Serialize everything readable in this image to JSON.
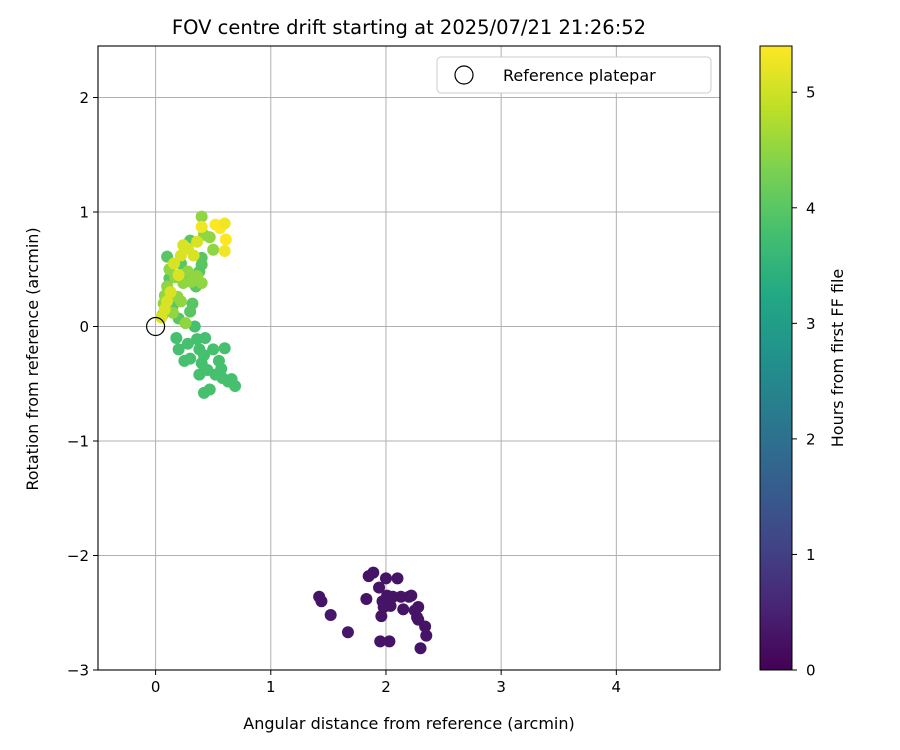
{
  "chart_data": {
    "type": "scatter",
    "title": "FOV centre drift starting at 2025/07/21 21:26:52",
    "xlabel": "Angular distance from reference (arcmin)",
    "ylabel": "Rotation from reference (arcmin)",
    "xlim": [
      -0.5,
      4.9
    ],
    "ylim": [
      -3.0,
      2.45
    ],
    "xticks": [
      "0",
      "1",
      "2",
      "3",
      "4"
    ],
    "yticks": [
      "−3",
      "−2",
      "−1",
      "0",
      "1",
      "2"
    ],
    "grid": true,
    "legend": {
      "position": "top-right",
      "entries": [
        "Reference platepar"
      ]
    },
    "reference_point": {
      "x": 0,
      "y": 0
    },
    "colorbar": {
      "label": "Hours from first FF file",
      "range": [
        0,
        5.4
      ],
      "ticks": [
        "0",
        "1",
        "2",
        "3",
        "4",
        "5"
      ],
      "colormap": "viridis"
    },
    "points": [
      {
        "x": 1.42,
        "y": -2.36,
        "h": 0.3
      },
      {
        "x": 1.44,
        "y": -2.4,
        "h": 0.3
      },
      {
        "x": 1.52,
        "y": -2.52,
        "h": 0.35
      },
      {
        "x": 1.67,
        "y": -2.67,
        "h": 0.35
      },
      {
        "x": 1.83,
        "y": -2.38,
        "h": 0.3
      },
      {
        "x": 1.85,
        "y": -2.18,
        "h": 0.3
      },
      {
        "x": 1.89,
        "y": -2.15,
        "h": 0.3
      },
      {
        "x": 1.94,
        "y": -2.28,
        "h": 0.3
      },
      {
        "x": 1.95,
        "y": -2.75,
        "h": 0.3
      },
      {
        "x": 1.96,
        "y": -2.53,
        "h": 0.3
      },
      {
        "x": 1.97,
        "y": -2.4,
        "h": 0.3
      },
      {
        "x": 1.98,
        "y": -2.45,
        "h": 0.3
      },
      {
        "x": 2.0,
        "y": -2.2,
        "h": 0.3
      },
      {
        "x": 2.01,
        "y": -2.35,
        "h": 0.3
      },
      {
        "x": 2.03,
        "y": -2.75,
        "h": 0.3
      },
      {
        "x": 2.04,
        "y": -2.44,
        "h": 0.3
      },
      {
        "x": 2.06,
        "y": -2.36,
        "h": 0.3
      },
      {
        "x": 2.1,
        "y": -2.2,
        "h": 0.3
      },
      {
        "x": 2.13,
        "y": -2.36,
        "h": 0.3
      },
      {
        "x": 2.15,
        "y": -2.47,
        "h": 0.3
      },
      {
        "x": 2.2,
        "y": -2.36,
        "h": 0.3
      },
      {
        "x": 2.22,
        "y": -2.35,
        "h": 0.3
      },
      {
        "x": 2.25,
        "y": -2.48,
        "h": 0.3
      },
      {
        "x": 2.27,
        "y": -2.54,
        "h": 0.3
      },
      {
        "x": 2.28,
        "y": -2.45,
        "h": 0.3
      },
      {
        "x": 2.28,
        "y": -2.56,
        "h": 0.3
      },
      {
        "x": 2.3,
        "y": -2.81,
        "h": 0.3
      },
      {
        "x": 2.34,
        "y": -2.62,
        "h": 0.3
      },
      {
        "x": 2.35,
        "y": -2.7,
        "h": 0.3
      },
      {
        "x": 0.18,
        "y": -0.1,
        "h": 3.8
      },
      {
        "x": 0.2,
        "y": -0.2,
        "h": 3.8
      },
      {
        "x": 0.25,
        "y": -0.3,
        "h": 3.8
      },
      {
        "x": 0.28,
        "y": -0.15,
        "h": 3.8
      },
      {
        "x": 0.3,
        "y": -0.28,
        "h": 3.8
      },
      {
        "x": 0.34,
        "y": 0.0,
        "h": 3.8
      },
      {
        "x": 0.36,
        "y": -0.11,
        "h": 3.8
      },
      {
        "x": 0.38,
        "y": -0.2,
        "h": 3.8
      },
      {
        "x": 0.38,
        "y": -0.42,
        "h": 3.8
      },
      {
        "x": 0.4,
        "y": -0.32,
        "h": 3.8
      },
      {
        "x": 0.42,
        "y": -0.25,
        "h": 3.8
      },
      {
        "x": 0.42,
        "y": -0.58,
        "h": 3.8
      },
      {
        "x": 0.43,
        "y": -0.1,
        "h": 3.8
      },
      {
        "x": 0.45,
        "y": -0.38,
        "h": 3.8
      },
      {
        "x": 0.47,
        "y": -0.55,
        "h": 3.8
      },
      {
        "x": 0.5,
        "y": -0.2,
        "h": 3.8
      },
      {
        "x": 0.52,
        "y": -0.42,
        "h": 3.8
      },
      {
        "x": 0.55,
        "y": -0.3,
        "h": 3.8
      },
      {
        "x": 0.57,
        "y": -0.37,
        "h": 3.8
      },
      {
        "x": 0.58,
        "y": -0.45,
        "h": 3.8
      },
      {
        "x": 0.6,
        "y": -0.19,
        "h": 3.8
      },
      {
        "x": 0.63,
        "y": -0.48,
        "h": 3.8
      },
      {
        "x": 0.66,
        "y": -0.46,
        "h": 3.8
      },
      {
        "x": 0.69,
        "y": -0.52,
        "h": 3.8
      },
      {
        "x": 0.1,
        "y": 0.61,
        "h": 4.0
      },
      {
        "x": 0.12,
        "y": 0.42,
        "h": 4.0
      },
      {
        "x": 0.15,
        "y": 0.18,
        "h": 4.0
      },
      {
        "x": 0.2,
        "y": 0.07,
        "h": 4.0
      },
      {
        "x": 0.22,
        "y": 0.55,
        "h": 4.0
      },
      {
        "x": 0.27,
        "y": 0.45,
        "h": 4.0
      },
      {
        "x": 0.3,
        "y": 0.13,
        "h": 4.0
      },
      {
        "x": 0.32,
        "y": 0.2,
        "h": 4.0
      },
      {
        "x": 0.35,
        "y": 0.35,
        "h": 4.0
      },
      {
        "x": 0.38,
        "y": 0.48,
        "h": 4.0
      },
      {
        "x": 0.4,
        "y": 0.54,
        "h": 4.0
      },
      {
        "x": 0.4,
        "y": 0.6,
        "h": 4.0
      },
      {
        "x": 0.3,
        "y": 0.75,
        "h": 4.0
      },
      {
        "x": 0.06,
        "y": 0.1,
        "h": 4.5
      },
      {
        "x": 0.07,
        "y": 0.2,
        "h": 4.5
      },
      {
        "x": 0.08,
        "y": 0.27,
        "h": 4.5
      },
      {
        "x": 0.1,
        "y": 0.35,
        "h": 4.5
      },
      {
        "x": 0.12,
        "y": 0.5,
        "h": 4.5
      },
      {
        "x": 0.15,
        "y": 0.12,
        "h": 4.5
      },
      {
        "x": 0.17,
        "y": 0.43,
        "h": 4.5
      },
      {
        "x": 0.19,
        "y": 0.26,
        "h": 4.5
      },
      {
        "x": 0.22,
        "y": 0.22,
        "h": 4.5
      },
      {
        "x": 0.24,
        "y": 0.38,
        "h": 4.5
      },
      {
        "x": 0.26,
        "y": 0.03,
        "h": 4.5
      },
      {
        "x": 0.28,
        "y": 0.48,
        "h": 4.5
      },
      {
        "x": 0.31,
        "y": 0.39,
        "h": 4.5
      },
      {
        "x": 0.36,
        "y": 0.44,
        "h": 4.5
      },
      {
        "x": 0.4,
        "y": 0.38,
        "h": 4.5
      },
      {
        "x": 0.4,
        "y": 0.96,
        "h": 4.5
      },
      {
        "x": 0.42,
        "y": 0.8,
        "h": 4.5
      },
      {
        "x": 0.47,
        "y": 0.78,
        "h": 4.5
      },
      {
        "x": 0.5,
        "y": 0.67,
        "h": 4.5
      },
      {
        "x": 0.05,
        "y": 0.08,
        "h": 5.1
      },
      {
        "x": 0.08,
        "y": 0.15,
        "h": 5.1
      },
      {
        "x": 0.1,
        "y": 0.22,
        "h": 5.1
      },
      {
        "x": 0.13,
        "y": 0.3,
        "h": 5.1
      },
      {
        "x": 0.16,
        "y": 0.55,
        "h": 5.1
      },
      {
        "x": 0.2,
        "y": 0.45,
        "h": 5.1
      },
      {
        "x": 0.22,
        "y": 0.62,
        "h": 5.1
      },
      {
        "x": 0.24,
        "y": 0.71,
        "h": 5.1
      },
      {
        "x": 0.28,
        "y": 0.68,
        "h": 5.1
      },
      {
        "x": 0.33,
        "y": 0.62,
        "h": 5.1
      },
      {
        "x": 0.36,
        "y": 0.74,
        "h": 5.1
      },
      {
        "x": 0.4,
        "y": 0.87,
        "h": 5.3
      },
      {
        "x": 0.52,
        "y": 0.89,
        "h": 5.4
      },
      {
        "x": 0.56,
        "y": 0.86,
        "h": 5.4
      },
      {
        "x": 0.6,
        "y": 0.9,
        "h": 5.3
      },
      {
        "x": 0.61,
        "y": 0.76,
        "h": 5.4
      },
      {
        "x": 0.6,
        "y": 0.66,
        "h": 5.3
      }
    ]
  }
}
